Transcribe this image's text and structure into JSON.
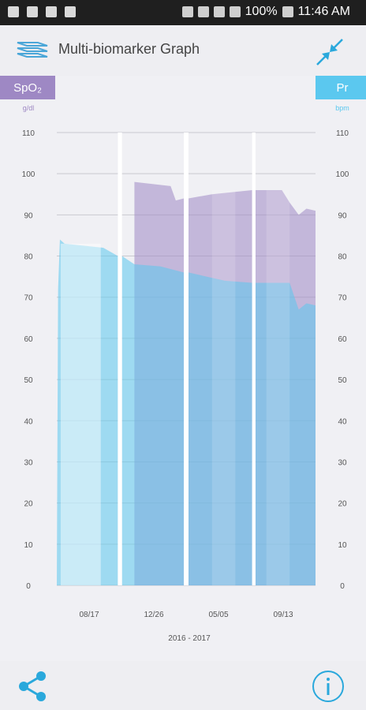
{
  "status_bar": {
    "battery": "100%",
    "time": "11:46 AM"
  },
  "app_bar": {
    "title": "Multi-biomarker Graph"
  },
  "left_tag": {
    "label": "SpO₂",
    "unit": "g/dl"
  },
  "right_tag": {
    "label": "Pr",
    "unit": "bpm"
  },
  "colors": {
    "spo2": "#9e88c4",
    "pr": "#5bc8ef",
    "accent": "#2aa8dc"
  },
  "icons": {
    "layers": "layers-icon",
    "collapse": "collapse-arrows-icon",
    "share": "share-icon",
    "info": "info-icon"
  },
  "chart_data": {
    "type": "area",
    "xlabel": "2016 - 2017",
    "x_ticks": [
      "08/17",
      "12/26",
      "05/05",
      "09/13"
    ],
    "y_left": {
      "label": "SpO₂",
      "unit": "g/dl",
      "ticks": [
        0,
        10,
        20,
        30,
        40,
        50,
        60,
        70,
        80,
        90,
        100,
        110
      ],
      "ylim": [
        0,
        110
      ]
    },
    "y_right": {
      "label": "Pr",
      "unit": "bpm",
      "ticks": [
        0,
        10,
        20,
        30,
        40,
        50,
        60,
        70,
        80,
        90,
        100,
        110
      ],
      "ylim": [
        0,
        110
      ]
    },
    "grid": true,
    "gaps": [
      {
        "from": 0.236,
        "to": 0.252
      },
      {
        "from": 0.491,
        "to": 0.509
      },
      {
        "from": 0.755,
        "to": 0.768
      }
    ],
    "series": [
      {
        "name": "Pr",
        "points": [
          [
            0.0,
            0
          ],
          [
            0.005,
            72
          ],
          [
            0.012,
            84
          ],
          [
            0.03,
            83
          ],
          [
            0.18,
            82
          ],
          [
            0.236,
            80
          ],
          [
            0.252,
            80
          ],
          [
            0.3,
            78
          ],
          [
            0.4,
            77.5
          ],
          [
            0.491,
            76
          ],
          [
            0.509,
            76
          ],
          [
            0.65,
            74
          ],
          [
            0.755,
            73.5
          ],
          [
            0.768,
            73.5
          ],
          [
            0.9,
            73.5
          ],
          [
            0.935,
            67
          ],
          [
            0.965,
            68.5
          ],
          [
            1.0,
            68
          ]
        ]
      },
      {
        "name": "SpO₂",
        "points": [
          [
            0.3,
            98
          ],
          [
            0.44,
            97
          ],
          [
            0.46,
            93.5
          ],
          [
            0.491,
            94
          ],
          [
            0.509,
            94
          ],
          [
            0.6,
            95
          ],
          [
            0.755,
            96
          ],
          [
            0.768,
            96
          ],
          [
            0.87,
            96
          ],
          [
            0.9,
            93
          ],
          [
            0.935,
            90
          ],
          [
            0.965,
            91.5
          ],
          [
            1.0,
            91
          ]
        ]
      }
    ]
  }
}
